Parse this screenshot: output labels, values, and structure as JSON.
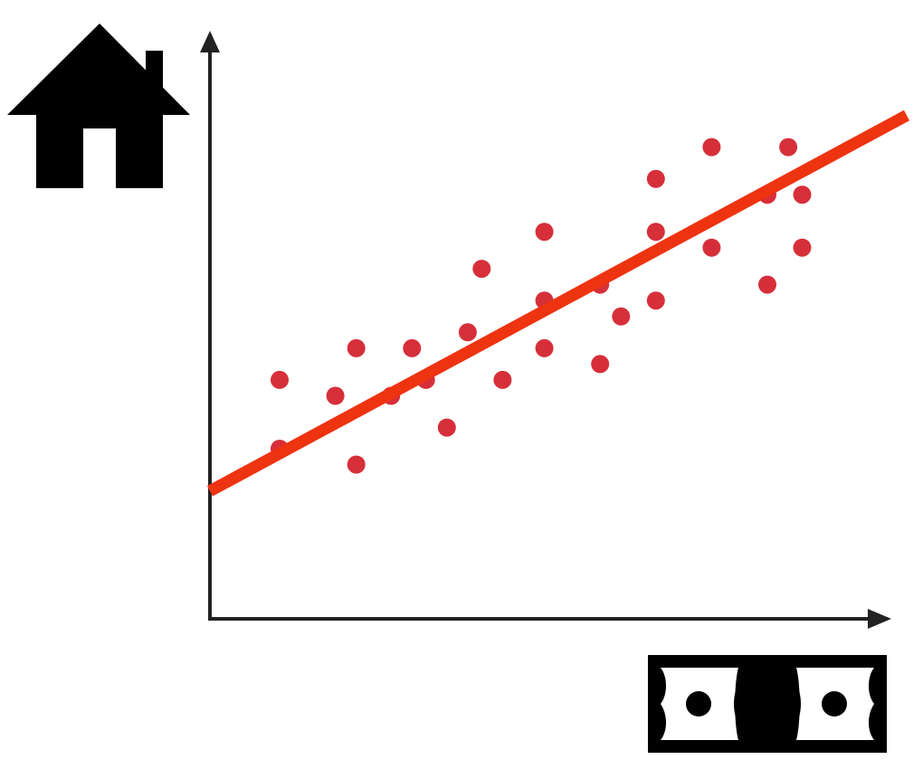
{
  "chart_data": {
    "type": "scatter",
    "title": "",
    "xlabel": "",
    "ylabel": "",
    "x_axis_icon": "money-bill-icon",
    "y_axis_icon": "house-icon",
    "xlim": [
      0,
      100
    ],
    "ylim": [
      0,
      100
    ],
    "grid": false,
    "legend": "none",
    "colors": {
      "points": "#d62f3a",
      "trend_line": "#ee3311",
      "axes": "#222222",
      "icons": "#000000"
    },
    "points": [
      {
        "x": 10,
        "y": 33
      },
      {
        "x": 10,
        "y": 20
      },
      {
        "x": 18,
        "y": 30
      },
      {
        "x": 21,
        "y": 39
      },
      {
        "x": 21,
        "y": 17
      },
      {
        "x": 26,
        "y": 30
      },
      {
        "x": 29,
        "y": 39
      },
      {
        "x": 31,
        "y": 33
      },
      {
        "x": 34,
        "y": 24
      },
      {
        "x": 37,
        "y": 42
      },
      {
        "x": 39,
        "y": 54
      },
      {
        "x": 42,
        "y": 33
      },
      {
        "x": 48,
        "y": 61
      },
      {
        "x": 48,
        "y": 48
      },
      {
        "x": 48,
        "y": 39
      },
      {
        "x": 56,
        "y": 51
      },
      {
        "x": 56,
        "y": 36
      },
      {
        "x": 59,
        "y": 45
      },
      {
        "x": 64,
        "y": 71
      },
      {
        "x": 64,
        "y": 61
      },
      {
        "x": 64,
        "y": 48
      },
      {
        "x": 72,
        "y": 77
      },
      {
        "x": 72,
        "y": 58
      },
      {
        "x": 80,
        "y": 68
      },
      {
        "x": 80,
        "y": 51
      },
      {
        "x": 83,
        "y": 77
      },
      {
        "x": 85,
        "y": 68
      },
      {
        "x": 85,
        "y": 58
      }
    ],
    "trend_line": {
      "x": [
        0,
        100
      ],
      "y": [
        12,
        83
      ]
    }
  }
}
